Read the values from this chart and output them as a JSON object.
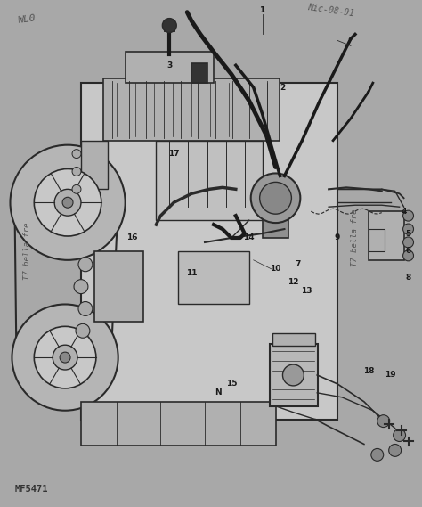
{
  "bg_color": "#a8a8a8",
  "fig_width": 4.74,
  "fig_height": 5.69,
  "dpi": 100,
  "watermark_tl": "WL0",
  "watermark_tr": "Nic-08-91",
  "watermark_bl": "T7 bella fre",
  "watermark_br": "T7 bella fre",
  "footer_text": "MF5471",
  "text_color": "#3a3a3a",
  "diagram_line_color": "#2a2a2a"
}
